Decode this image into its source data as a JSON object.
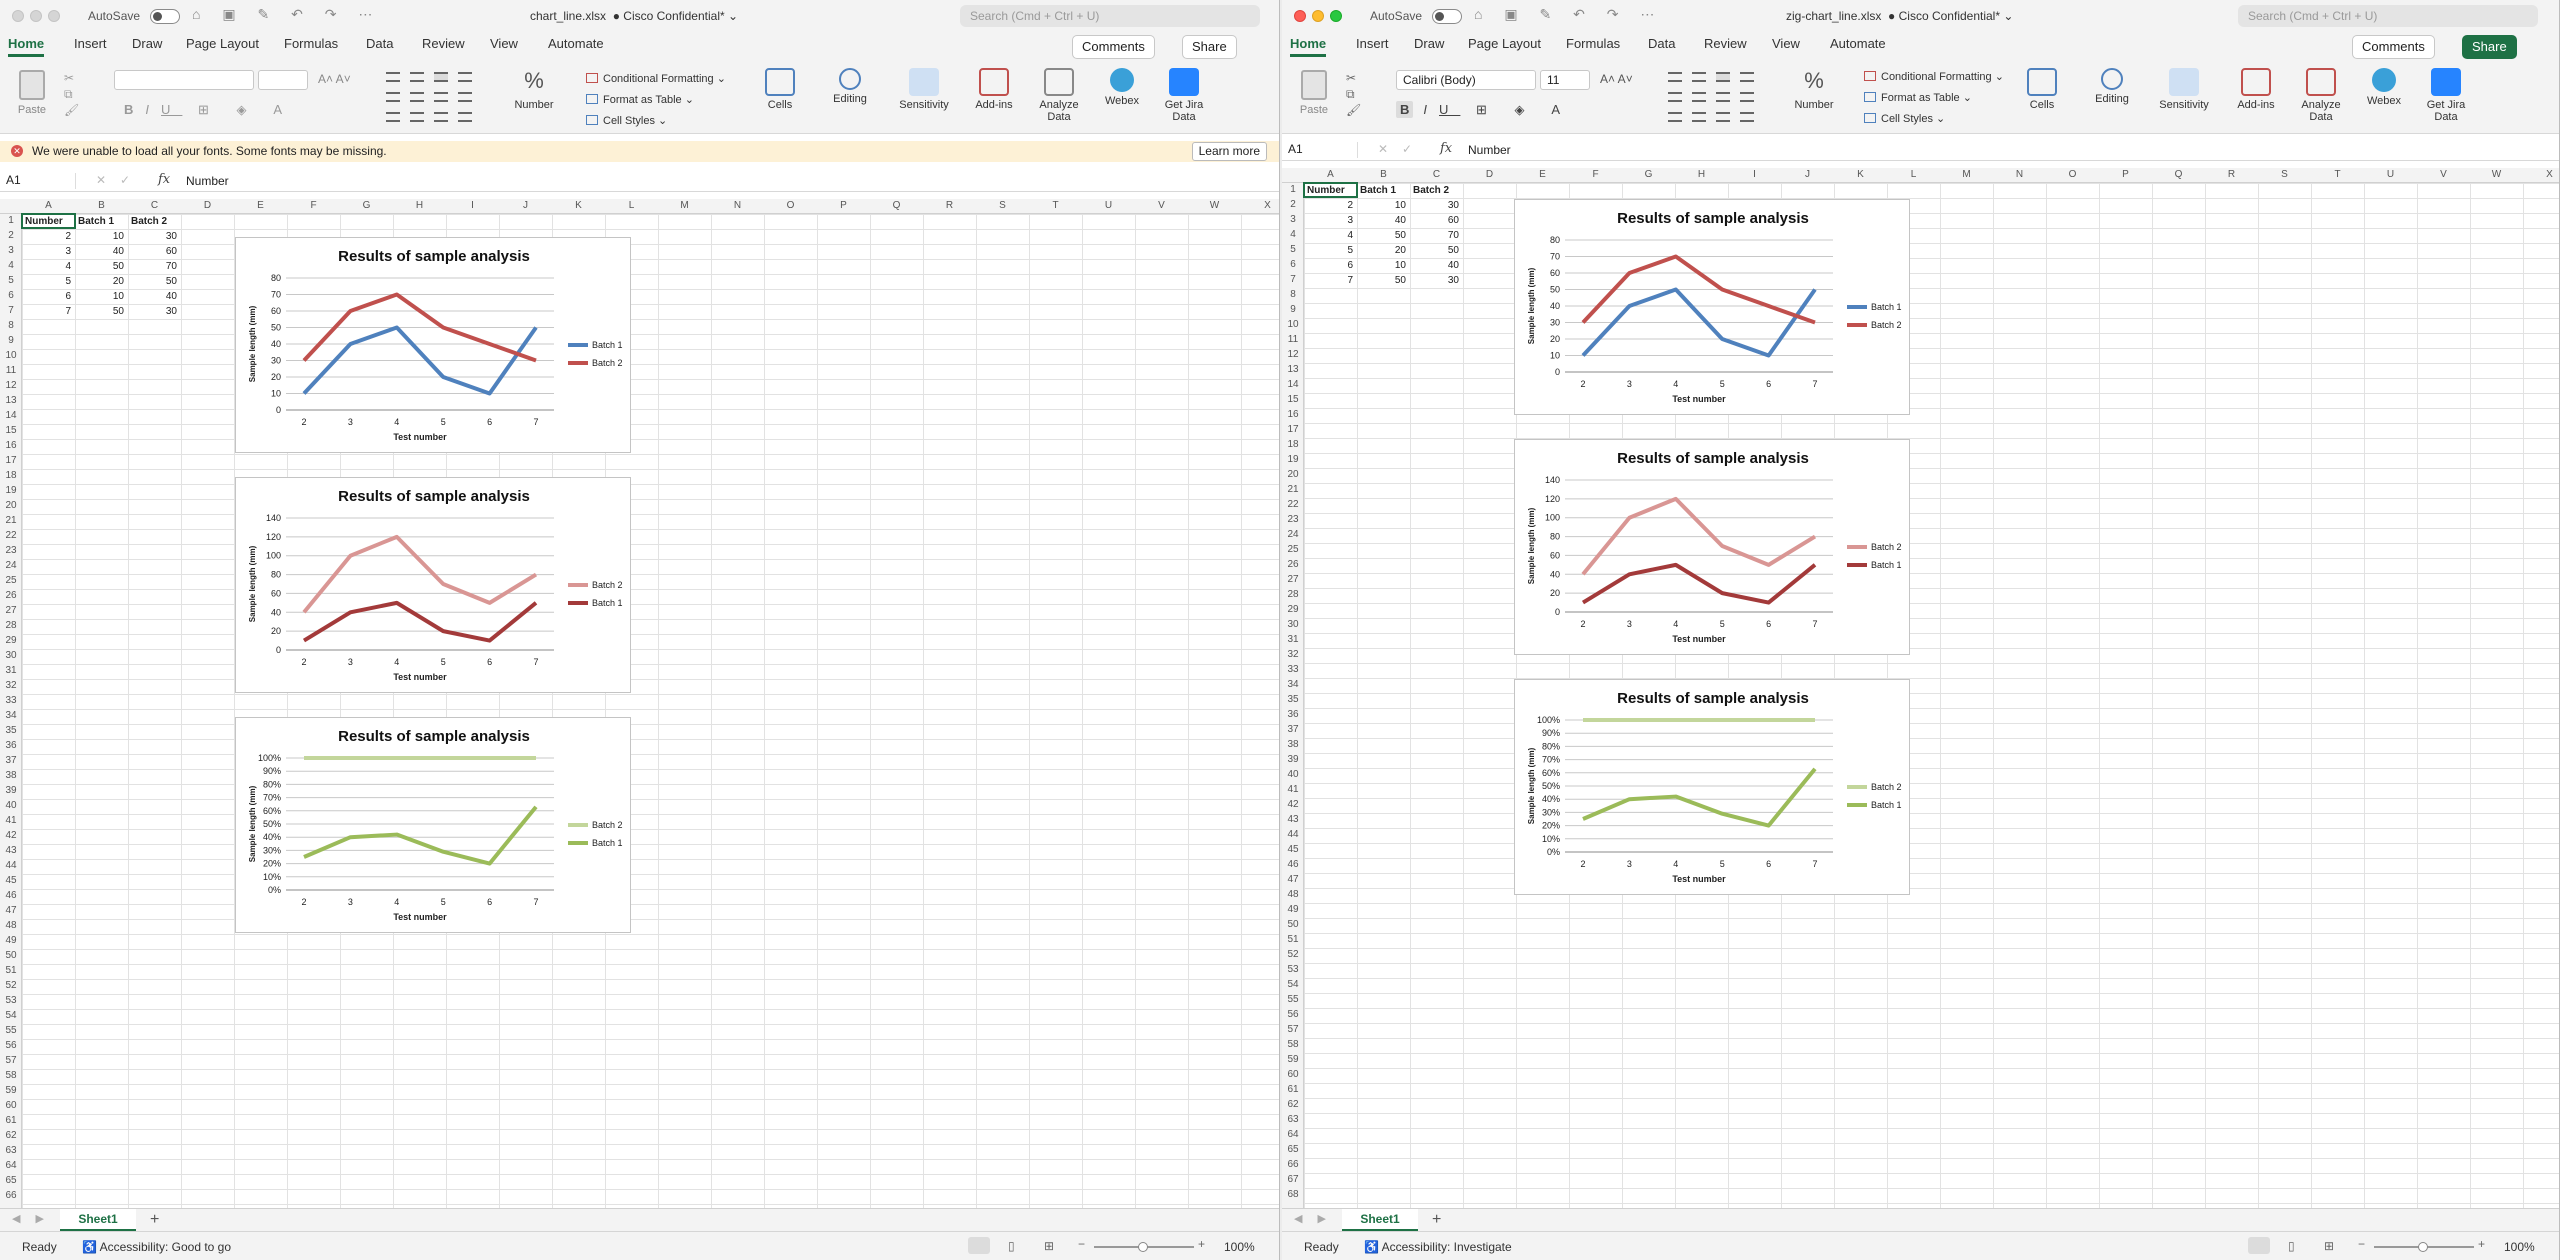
{
  "common": {
    "autosave_label": "AutoSave",
    "confidential_label": "Cisco Confidential*",
    "search_placeholder": "Search (Cmd + Ctrl + U)",
    "ribbon_tabs": [
      "Home",
      "Insert",
      "Draw",
      "Page Layout",
      "Formulas",
      "Data",
      "Review",
      "View",
      "Automate"
    ],
    "comments_label": "Comments",
    "share_label": "Share",
    "paste_label": "Paste",
    "cond_format_label": "Conditional Formatting",
    "format_table_label": "Format as Table",
    "cell_styles_label": "Cell Styles",
    "number_label": "Number",
    "cells_label": "Cells",
    "editing_label": "Editing",
    "sensitivity_label": "Sensitivity",
    "addins_label": "Add-ins",
    "analyze_label": "Analyze Data",
    "webex_label": "Webex",
    "jira_label": "Get Jira Data",
    "fx_label": "fx",
    "formula_value": "Number",
    "namebox_value": "A1",
    "sheet_tab": "Sheet1",
    "status_ready": "Ready",
    "zoom": "100%",
    "columns": [
      "A",
      "B",
      "C",
      "D",
      "E",
      "F",
      "G",
      "H",
      "I",
      "J",
      "K",
      "L",
      "M",
      "N",
      "O",
      "P",
      "Q",
      "R",
      "S",
      "T",
      "U",
      "V",
      "W",
      "X"
    ]
  },
  "left": {
    "filename": "chart_line.xlsx",
    "font_name": "",
    "font_size": "",
    "accessibility": "Accessibility: Good to go",
    "message": "We were unable to load all your fonts.  Some fonts may be missing.",
    "learn_more": "Learn more",
    "first_row": 1,
    "row_count": 66
  },
  "right": {
    "filename": "zig-chart_line.xlsx",
    "font_name": "Calibri (Body)",
    "font_size": "11",
    "accessibility": "Accessibility: Investigate",
    "first_row": 1,
    "row_count": 68
  },
  "table": {
    "headers": [
      "Number",
      "Batch 1",
      "Batch 2"
    ],
    "rows": [
      [
        2,
        10,
        30
      ],
      [
        3,
        40,
        60
      ],
      [
        4,
        50,
        70
      ],
      [
        5,
        20,
        50
      ],
      [
        6,
        10,
        40
      ],
      [
        7,
        50,
        30
      ]
    ]
  },
  "chart_data": [
    {
      "type": "line",
      "title": "Results of sample analysis",
      "xlabel": "Test number",
      "ylabel": "Sample length (mm)",
      "categories": [
        "2",
        "3",
        "4",
        "5",
        "6",
        "7"
      ],
      "series": [
        {
          "name": "Batch 1",
          "values": [
            10,
            40,
            50,
            20,
            10,
            50
          ],
          "color": "#4f81bd"
        },
        {
          "name": "Batch 2",
          "values": [
            30,
            60,
            70,
            50,
            40,
            30
          ],
          "color": "#c0504d"
        }
      ],
      "ylim": [
        0,
        80
      ],
      "ytick_step": 10,
      "stacked": false,
      "legend": "right",
      "grid": true
    },
    {
      "type": "line",
      "title": "Results of sample analysis",
      "xlabel": "Test number",
      "ylabel": "Sample length (mm)",
      "categories": [
        "2",
        "3",
        "4",
        "5",
        "6",
        "7"
      ],
      "series": [
        {
          "name": "Batch 1",
          "values": [
            10,
            40,
            50,
            20,
            10,
            50
          ],
          "color": "#a33a3a"
        },
        {
          "name": "Batch 2",
          "values": [
            30,
            60,
            70,
            50,
            40,
            30
          ],
          "color": "#d99694"
        }
      ],
      "ylim": [
        0,
        140
      ],
      "ytick_step": 20,
      "stacked": true,
      "legend": "right",
      "legend_order": [
        "Batch 2",
        "Batch 1"
      ],
      "grid": true
    },
    {
      "type": "line",
      "title": "Results of sample analysis",
      "xlabel": "Test number",
      "ylabel": "Sample length (mm)",
      "categories": [
        "2",
        "3",
        "4",
        "5",
        "6",
        "7"
      ],
      "series": [
        {
          "name": "Batch 1",
          "values": [
            0.25,
            0.4,
            0.42,
            0.29,
            0.2,
            0.63
          ],
          "color": "#9bbb59"
        },
        {
          "name": "Batch 2",
          "values": [
            1,
            1,
            1,
            1,
            1,
            1
          ],
          "color": "#c3d69b"
        }
      ],
      "ylim": [
        0,
        1
      ],
      "ytick_step": 0.1,
      "percent": true,
      "legend": "right",
      "legend_order": [
        "Batch 2",
        "Batch 1"
      ],
      "grid": true
    }
  ]
}
